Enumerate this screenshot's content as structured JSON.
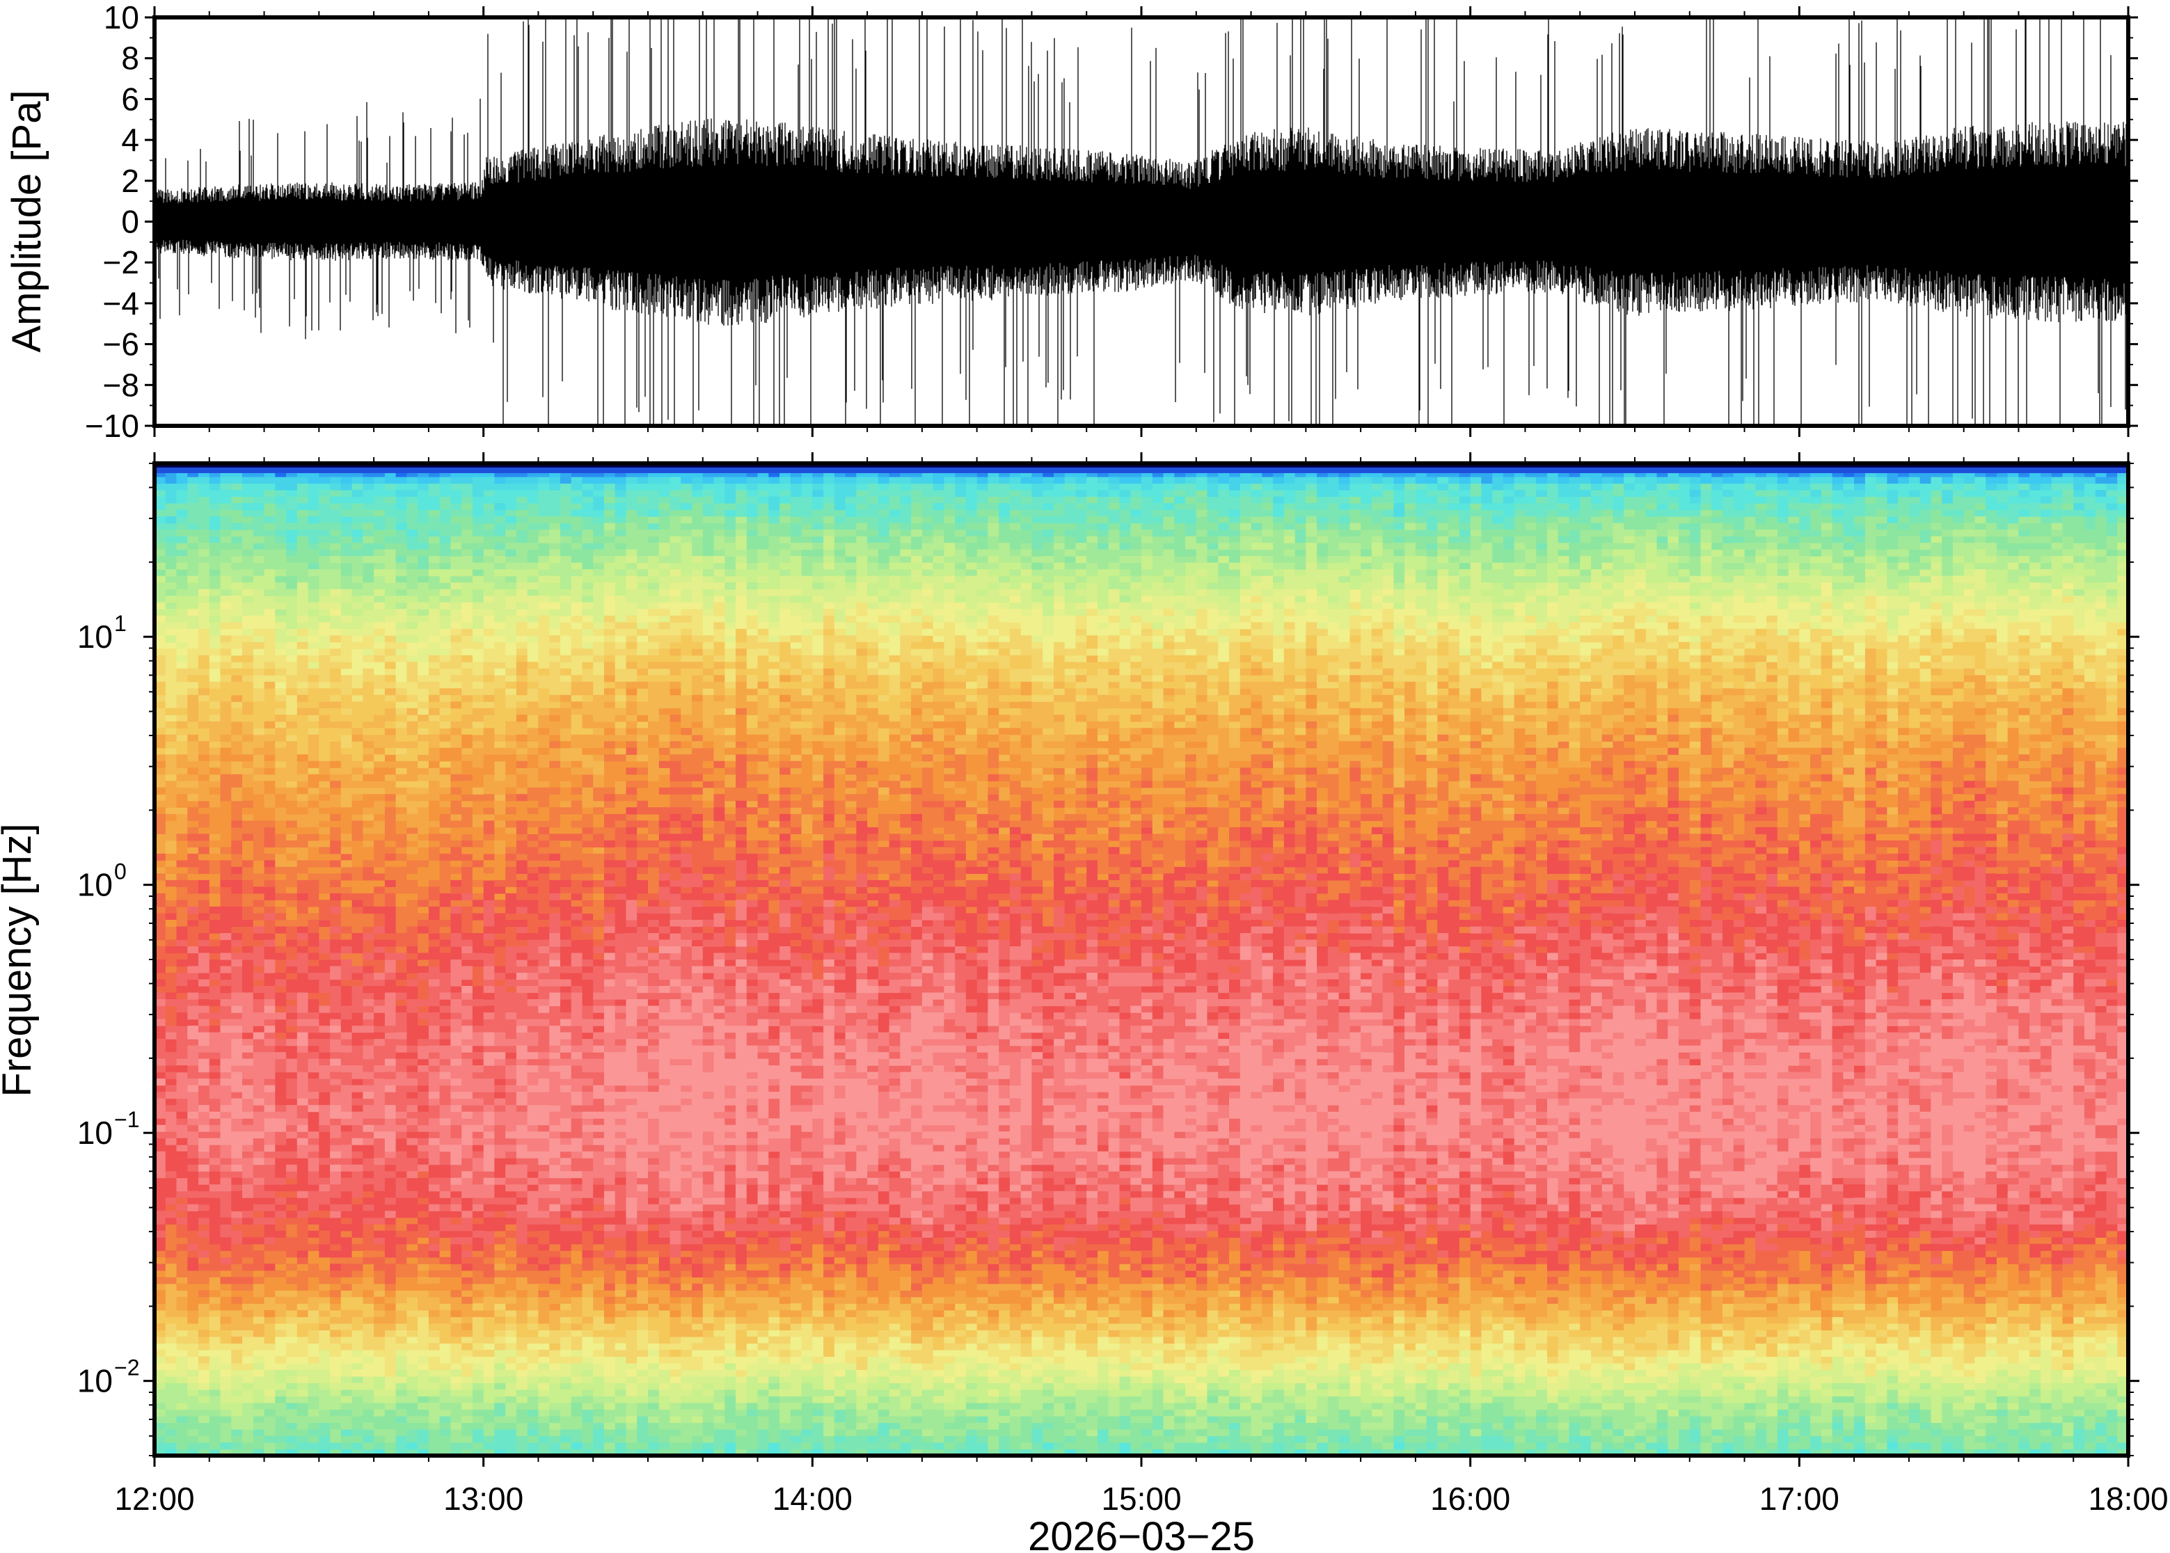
{
  "chart_data": [
    {
      "type": "line",
      "panel": "waveform",
      "ylabel": "Amplitude [Pa]",
      "ylim": [
        -10,
        10
      ],
      "yticks": [
        10,
        8,
        6,
        4,
        2,
        0,
        -2,
        -4,
        -6,
        -8,
        -10
      ],
      "ytick_labels": [
        "10",
        "8",
        "6",
        "4",
        "2",
        "0",
        "−2",
        "−4",
        "−6",
        "−8",
        "−10"
      ],
      "x_range": [
        "12:00",
        "18:00"
      ],
      "envelope": {
        "time_hours": [
          12.0,
          12.25,
          12.5,
          12.75,
          12.99,
          13.01,
          13.25,
          13.5,
          13.75,
          14.0,
          14.25,
          14.5,
          14.75,
          15.0,
          15.15,
          15.3,
          15.5,
          15.75,
          16.0,
          16.25,
          16.5,
          16.75,
          17.0,
          17.25,
          17.5,
          17.75,
          18.0
        ],
        "half_width_pa": [
          1.2,
          1.4,
          1.5,
          1.4,
          1.5,
          2.5,
          3.0,
          3.6,
          4.0,
          3.6,
          3.2,
          3.0,
          2.8,
          2.6,
          2.2,
          3.4,
          3.6,
          3.0,
          2.8,
          2.7,
          3.6,
          3.4,
          3.2,
          3.0,
          3.6,
          3.8,
          3.8
        ]
      },
      "grid": false
    },
    {
      "type": "heatmap",
      "panel": "spectrogram",
      "ylabel": "Frequency [Hz]",
      "xlabel": "2026−03−25",
      "yscale": "log",
      "ylim": [
        0.005,
        50
      ],
      "yticks": [
        0.01,
        0.1,
        1,
        10
      ],
      "ytick_labels": [
        {
          "base": "10",
          "exp": "−2"
        },
        {
          "base": "10",
          "exp": "−1"
        },
        {
          "base": "10",
          "exp": "0"
        },
        {
          "base": "10",
          "exp": "1"
        }
      ],
      "xticks": [
        "12:00",
        "13:00",
        "14:00",
        "15:00",
        "16:00",
        "17:00",
        "18:00"
      ],
      "colormap": [
        "#00006e",
        "#1e6ef0",
        "#3cc8f0",
        "#5ae6dc",
        "#8ce6a0",
        "#c8f08c",
        "#f0f08c",
        "#f5c85a",
        "#f5963c",
        "#f05050",
        "#fa9696"
      ],
      "frequency_profile": {
        "freq_hz": [
          0.005,
          0.008,
          0.012,
          0.02,
          0.03,
          0.05,
          0.1,
          0.2,
          0.5,
          1,
          3,
          6,
          10,
          20,
          40,
          48,
          50
        ],
        "color_index": [
          3.5,
          4.5,
          6,
          7.5,
          8.5,
          9.3,
          9.8,
          9.7,
          9.2,
          8.6,
          7.8,
          7.0,
          6.2,
          4.5,
          3.0,
          1.2,
          0.2
        ]
      },
      "grid": false
    }
  ]
}
